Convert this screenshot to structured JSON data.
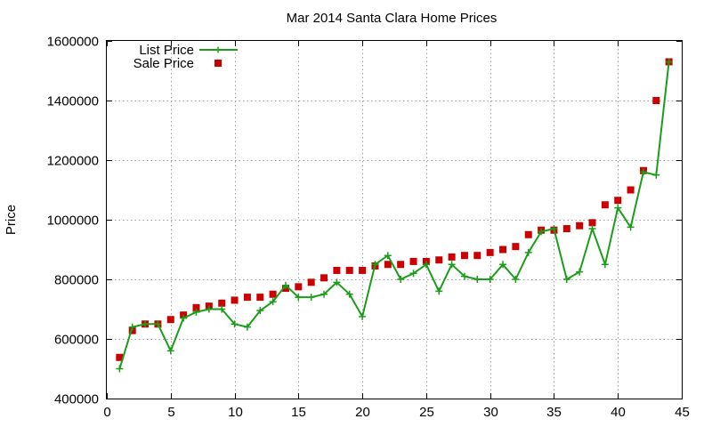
{
  "chart_data": {
    "type": "line",
    "title": "Mar 2014 Santa Clara Home Prices",
    "xlabel": "",
    "ylabel": "Price",
    "xlim": [
      0,
      45
    ],
    "ylim": [
      400000,
      1600000
    ],
    "x_ticks": [
      "0",
      "5",
      "10",
      "15",
      "20",
      "25",
      "30",
      "35",
      "40",
      "45"
    ],
    "y_ticks": [
      "400000",
      "600000",
      "800000",
      "1000000",
      "1200000",
      "1400000",
      "1600000"
    ],
    "grid": true,
    "legend_position": "top-left",
    "x": [
      1,
      2,
      3,
      4,
      5,
      6,
      7,
      8,
      9,
      10,
      11,
      12,
      13,
      14,
      15,
      16,
      17,
      18,
      19,
      20,
      21,
      22,
      23,
      24,
      25,
      26,
      27,
      28,
      29,
      30,
      31,
      32,
      33,
      34,
      35,
      36,
      37,
      38,
      39,
      40,
      41,
      42,
      43,
      44
    ],
    "series": [
      {
        "name": "List Price",
        "style": "lines+crosses",
        "color": "#1a9e1a",
        "values": [
          500000,
          640000,
          650000,
          650000,
          560000,
          670000,
          690000,
          700000,
          700000,
          650000,
          640000,
          695000,
          725000,
          780000,
          740000,
          740000,
          750000,
          790000,
          750000,
          675000,
          850000,
          880000,
          800000,
          820000,
          850000,
          760000,
          850000,
          810000,
          800000,
          800000,
          850000,
          800000,
          890000,
          960000,
          970000,
          800000,
          825000,
          970000,
          850000,
          1040000,
          975000,
          1160000,
          1150000,
          1530000
        ]
      },
      {
        "name": "Sale Price",
        "style": "squares",
        "color": "#cc0000",
        "values": [
          538000,
          628000,
          650000,
          650000,
          665000,
          680000,
          705000,
          710000,
          720000,
          730000,
          740000,
          740000,
          750000,
          770000,
          775000,
          790000,
          805000,
          830000,
          830000,
          830000,
          845000,
          850000,
          850000,
          860000,
          860000,
          865000,
          875000,
          880000,
          880000,
          890000,
          900000,
          910000,
          950000,
          965000,
          965000,
          970000,
          980000,
          990000,
          1050000,
          1065000,
          1100000,
          1165000,
          1400000,
          1530000
        ]
      }
    ]
  }
}
